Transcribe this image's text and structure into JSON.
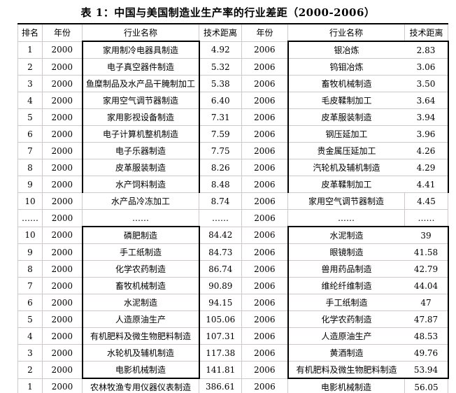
{
  "title": "表 1：中国与美国制造业生产率的行业差距（2000-2006）",
  "colors": {
    "grid": "#cfc8c8",
    "rule": "#000000",
    "text": "#000000",
    "background": "#ffffff"
  },
  "table": {
    "headers": [
      "排名",
      "年份",
      "行业名称",
      "技术距离",
      "年份",
      "行业名称",
      "技术距离"
    ],
    "rows": [
      {
        "cells": [
          "1",
          "2000",
          "家用制冷电器具制造",
          "4.92",
          "2006",
          "银冶炼",
          "2.83"
        ]
      },
      {
        "cells": [
          "2",
          "2000",
          "电子真空器件制造",
          "5.32",
          "2006",
          "钨钼冶炼",
          "3.06"
        ]
      },
      {
        "cells": [
          "3",
          "2000",
          "鱼糜制品及水产品干腌制加工",
          "5.38",
          "2006",
          "畜牧机械制造",
          "3.50"
        ]
      },
      {
        "cells": [
          "4",
          "2000",
          "家用空气调节器制造",
          "6.40",
          "2006",
          "毛皮鞣制加工",
          "3.64"
        ]
      },
      {
        "cells": [
          "5",
          "2000",
          "家用影视设备制造",
          "7.31",
          "2006",
          "皮革服装制造",
          "3.94"
        ]
      },
      {
        "cells": [
          "6",
          "2000",
          "电子计算机整机制造",
          "7.59",
          "2006",
          "钢压延加工",
          "3.96"
        ]
      },
      {
        "cells": [
          "7",
          "2000",
          "电子乐器制造",
          "7.75",
          "2006",
          "贵金属压延加工",
          "4.26"
        ]
      },
      {
        "cells": [
          "8",
          "2000",
          "皮革服装制造",
          "8.26",
          "2006",
          "汽轮机及辅机制造",
          "4.29"
        ]
      },
      {
        "cells": [
          "9",
          "2000",
          "水产饲料制造",
          "8.48",
          "2006",
          "皮革鞣制加工",
          "4.41"
        ]
      },
      {
        "cells": [
          "10",
          "2000",
          "水产品冷冻加工",
          "8.74",
          "2006",
          "家用空气调节器制造",
          "4.45"
        ]
      },
      {
        "cells": [
          "……",
          "2000",
          "……",
          "……",
          "2006",
          "……",
          "……"
        ]
      },
      {
        "cells": [
          "10",
          "2000",
          "磷肥制造",
          "84.42",
          "2006",
          "水泥制造",
          "39"
        ]
      },
      {
        "cells": [
          "9",
          "2000",
          "手工纸制造",
          "84.73",
          "2006",
          "眼镜制造",
          "41.58"
        ]
      },
      {
        "cells": [
          "8",
          "2000",
          "化学农药制造",
          "86.74",
          "2006",
          "兽用药品制造",
          "42.79"
        ]
      },
      {
        "cells": [
          "7",
          "2000",
          "畜牧机械制造",
          "90.89",
          "2006",
          "维纶纤维制造",
          "44.04"
        ]
      },
      {
        "cells": [
          "6",
          "2000",
          "水泥制造",
          "94.15",
          "2006",
          "手工纸制造",
          "47"
        ]
      },
      {
        "cells": [
          "5",
          "2000",
          "人造原油生产",
          "105.06",
          "2006",
          "化学农药制造",
          "47.87"
        ]
      },
      {
        "cells": [
          "4",
          "2000",
          "有机肥料及微生物肥料制造",
          "107.31",
          "2006",
          "人造原油生产",
          "48.53"
        ]
      },
      {
        "cells": [
          "3",
          "2000",
          "水轮机及辅机制造",
          "117.38",
          "2006",
          "黄酒制造",
          "49.76"
        ]
      },
      {
        "cells": [
          "2",
          "2000",
          "电影机械制造",
          "141.81",
          "2006",
          "有机肥料及微生物肥料制造",
          "53.94"
        ]
      },
      {
        "cells": [
          "1",
          "2000",
          "农林牧渔专用仪器仪表制造",
          "386.61",
          "2006",
          "电影机械制造",
          "56.05"
        ]
      }
    ]
  }
}
